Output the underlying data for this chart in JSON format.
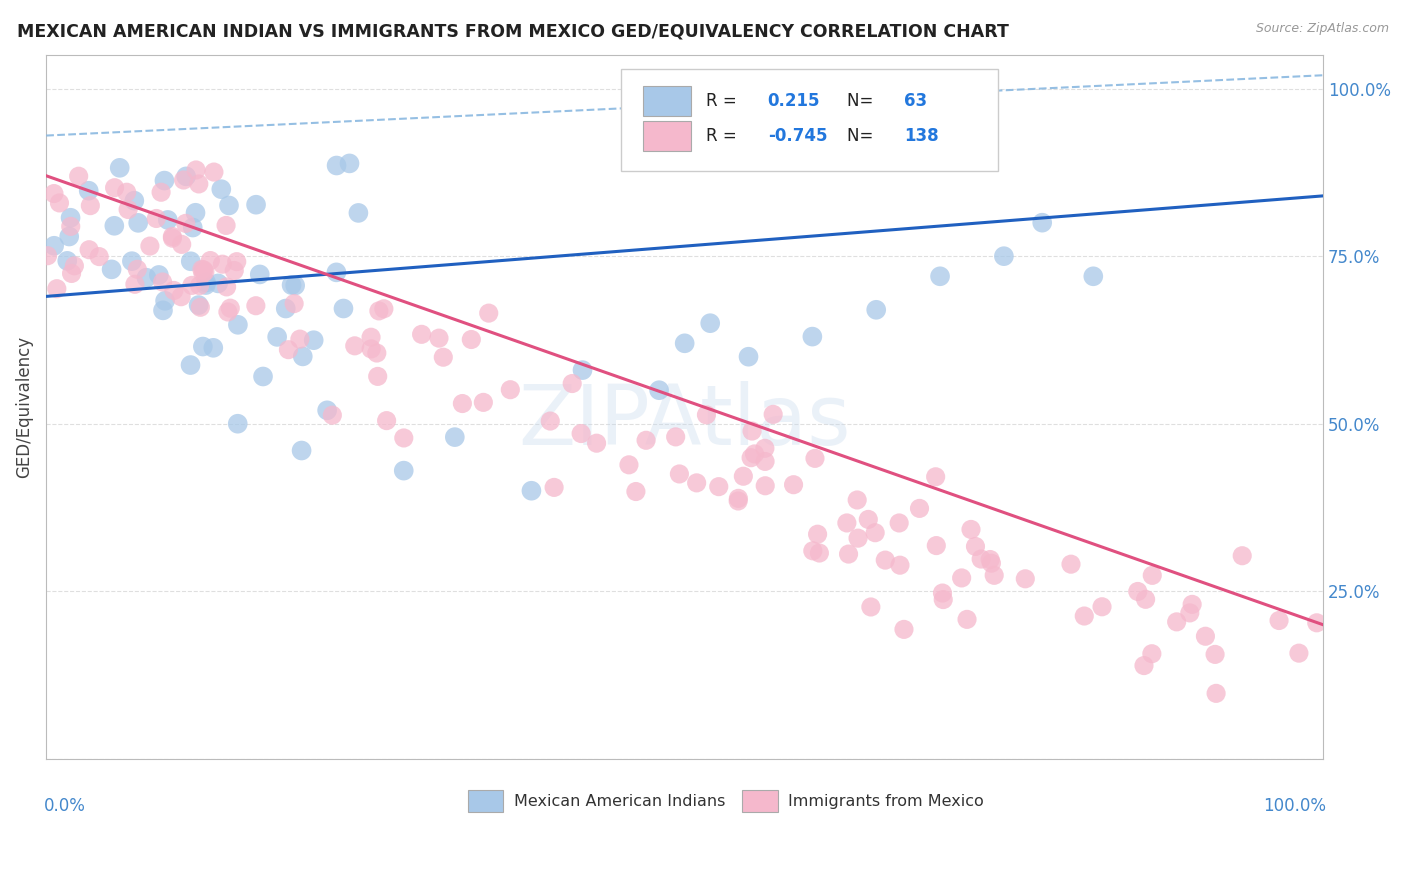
{
  "title": "MEXICAN AMERICAN INDIAN VS IMMIGRANTS FROM MEXICO GED/EQUIVALENCY CORRELATION CHART",
  "source": "Source: ZipAtlas.com",
  "ylabel": "GED/Equivalency",
  "legend_blue_label": "Mexican American Indians",
  "legend_pink_label": "Immigrants from Mexico",
  "blue_R": 0.215,
  "blue_N": 63,
  "pink_R": -0.745,
  "pink_N": 138,
  "blue_color": "#a8c8e8",
  "pink_color": "#f5b8cc",
  "blue_line_color": "#2060c0",
  "pink_line_color": "#e05080",
  "blue_trend": [
    0.0,
    0.69,
    1.0,
    0.84
  ],
  "pink_trend": [
    0.0,
    0.87,
    1.0,
    0.2
  ],
  "dashed_trend": [
    0.0,
    0.93,
    1.0,
    1.02
  ],
  "watermark": "ZIPAtlas",
  "background_color": "#ffffff",
  "grid_color": "#d8d8d8",
  "ylim": [
    0.0,
    1.05
  ],
  "xlim": [
    0.0,
    1.0
  ]
}
